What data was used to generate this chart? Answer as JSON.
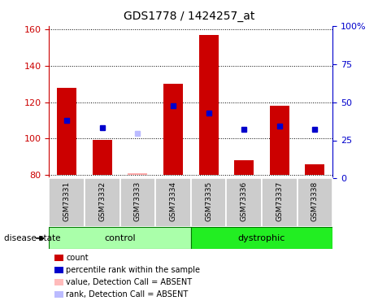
{
  "title": "GDS1778 / 1424257_at",
  "samples": [
    "GSM73331",
    "GSM73332",
    "GSM73333",
    "GSM73334",
    "GSM73335",
    "GSM73336",
    "GSM73337",
    "GSM73338"
  ],
  "baseline": 80,
  "bar_tops": [
    128,
    99,
    81,
    130,
    157,
    88,
    118,
    86
  ],
  "bar_colors": [
    "#cc0000",
    "#cc0000",
    "#ffaaaa",
    "#cc0000",
    "#cc0000",
    "#cc0000",
    "#cc0000",
    "#cc0000"
  ],
  "rank_values": [
    110,
    106,
    103,
    118,
    114,
    105,
    107,
    105
  ],
  "rank_colors": [
    "#0000cc",
    "#0000cc",
    "#bbbbff",
    "#0000cc",
    "#0000cc",
    "#0000cc",
    "#0000cc",
    "#0000cc"
  ],
  "ylim_left": [
    78,
    162
  ],
  "ylim_right": [
    0,
    100
  ],
  "yticks_left": [
    80,
    100,
    120,
    140,
    160
  ],
  "yticks_right": [
    0,
    25,
    50,
    75,
    100
  ],
  "yticklabels_right": [
    "0",
    "25",
    "50",
    "75",
    "100%"
  ],
  "control_samples": [
    0,
    1,
    2,
    3
  ],
  "dystrophic_samples": [
    4,
    5,
    6,
    7
  ],
  "control_color": "#aaffaa",
  "dystrophic_color": "#22ee22",
  "bar_bg_color": "#cccccc",
  "tick_label_color_left": "#cc0000",
  "tick_label_color_right": "#0000cc",
  "legend_items": [
    {
      "label": "count",
      "color": "#cc0000"
    },
    {
      "label": "percentile rank within the sample",
      "color": "#0000cc"
    },
    {
      "label": "value, Detection Call = ABSENT",
      "color": "#ffbbbb"
    },
    {
      "label": "rank, Detection Call = ABSENT",
      "color": "#bbbbff"
    }
  ]
}
